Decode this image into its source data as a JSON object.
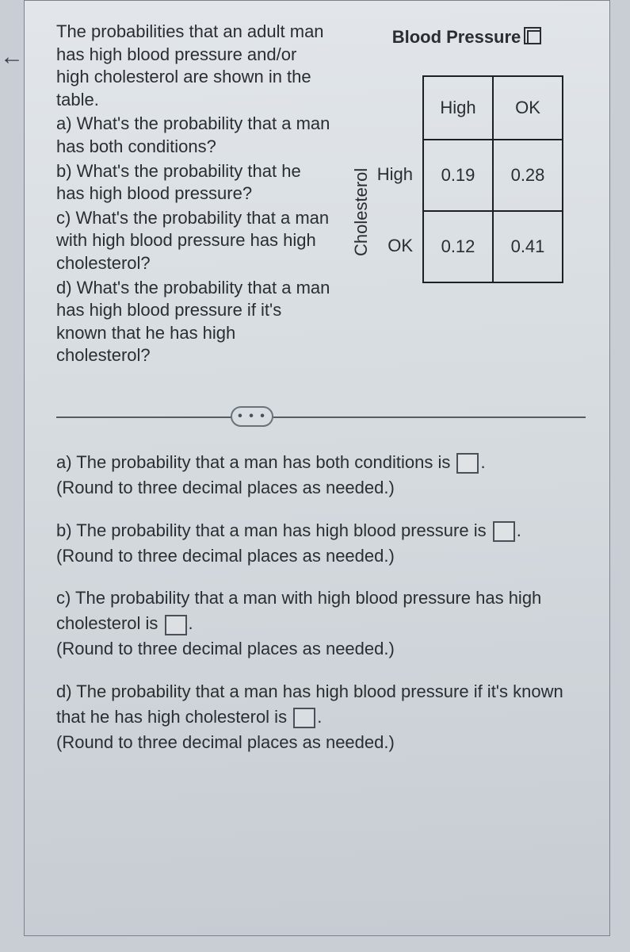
{
  "back_arrow_glyph": "←",
  "problem": {
    "intro": "The probabilities that an adult man has high blood pressure and/or high cholesterol are shown in the table.",
    "a": "a) What's the probability that a man has both conditions?",
    "b": "b) What's the probability that he has high blood pressure?",
    "c": "c) What's the probability that a man with high blood pressure has high cholesterol?",
    "d": "d) What's the probability that a man has high blood pressure if it's known that he has high cholesterol?"
  },
  "table": {
    "top_title": "Blood Pressure",
    "side_title": "Cholesterol",
    "col_headers": [
      "High",
      "OK"
    ],
    "row_headers": [
      "High",
      "OK"
    ],
    "rows": [
      [
        "0.19",
        "0.28"
      ],
      [
        "0.12",
        "0.41"
      ]
    ],
    "border_color": "#1d2024",
    "cell_fontsize": 22
  },
  "ellipsis_label": "• • •",
  "answers": {
    "a_text": "a) The probability that a man has both conditions is ",
    "a_period": ".",
    "a_hint": "(Round to three decimal places as needed.)",
    "b_text": "b) The probability that a man has high blood pressure is ",
    "b_period": ".",
    "b_hint": "(Round to three decimal places as needed.)",
    "c_text_1": "c) The probability that a man with high blood pressure has high cholesterol is ",
    "c_period": ".",
    "c_hint": "(Round to three decimal places as needed.)",
    "d_text_1": "d) The probability that a man has high blood pressure if it's known that he has high cholesterol is ",
    "d_period": ".",
    "d_hint": "(Round to three decimal places as needed.)"
  },
  "colors": {
    "page_bg_top": "#e2e6ea",
    "page_bg_bottom": "#c6ccd2",
    "outer_bg": "#c8ced4",
    "text": "#2a2e33",
    "border": "#7a838c"
  }
}
